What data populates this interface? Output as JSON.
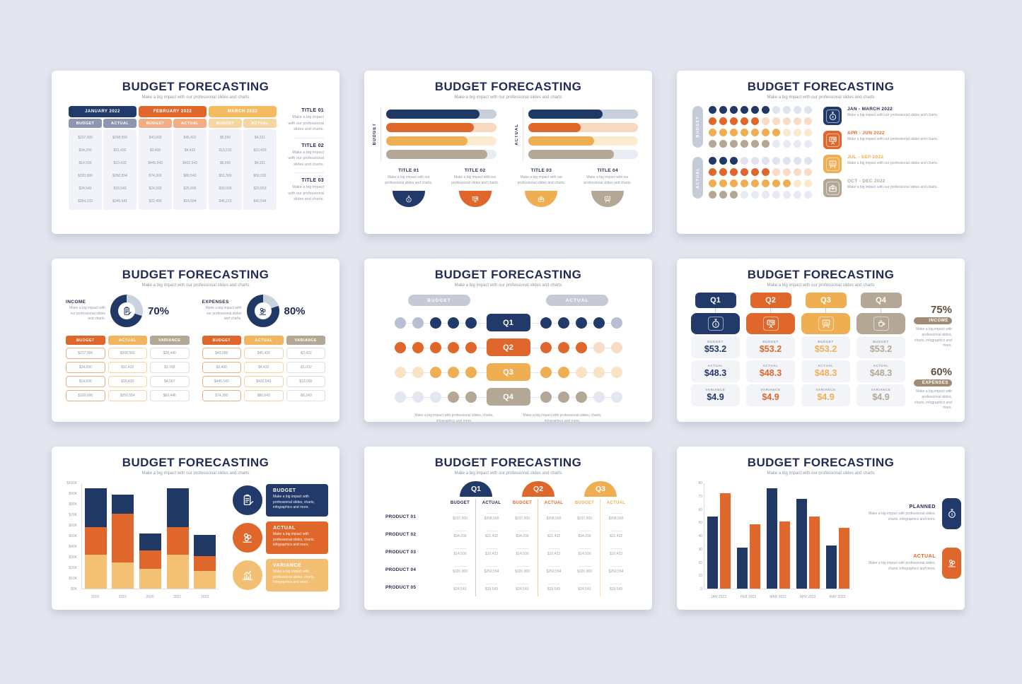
{
  "common": {
    "title": "BUDGET FORECASTING",
    "subtitle": "Make a big impact with our professional slides and charts",
    "desc_short": "Make a big impact with our professional slides and charts.",
    "desc_more": "Make a big impact with professional slides, charts, infographics and more."
  },
  "colors": {
    "navy": "#1F3864",
    "orange": "#E0672B",
    "yellow": "#F0AE52",
    "tan": "#B5A795",
    "heading": "#242B56",
    "page_bg": "#E3E6EF",
    "cell_bg": "#F1F3F8",
    "gray_pill": "#C5CAD6",
    "text_gray": "#949BAA",
    "value_gray": "#8F95A4"
  },
  "chart_data": [
    {
      "type": "bar",
      "title": "Slide 2 horizontal progress bars",
      "series": [
        {
          "name": "BUDGET",
          "values_pct": [
            85,
            80,
            74,
            92
          ]
        },
        {
          "name": "ACTUAL",
          "values_pct": [
            68,
            48,
            60,
            78
          ]
        }
      ],
      "colors": [
        "#1F3864",
        "#E0672B",
        "#F0AE52",
        "#B5A795"
      ]
    },
    {
      "type": "bar",
      "title": "Slide 7 stacked bars",
      "stacked": true,
      "categories": [
        "2018",
        "2019",
        "2020",
        "2021",
        "2022"
      ],
      "series": [
        {
          "name": "bottom-yellow",
          "values": [
            32,
            25,
            19,
            32,
            17
          ]
        },
        {
          "name": "middle-orange",
          "values": [
            26,
            46,
            17,
            26,
            14
          ]
        },
        {
          "name": "top-navy",
          "values": [
            37,
            18,
            16,
            37,
            20
          ]
        }
      ],
      "ylabel": "$K",
      "ylim": [
        0,
        100
      ]
    },
    {
      "type": "bar",
      "title": "Slide 9 grouped bars",
      "categories": [
        "JAN 2022",
        "FEB 2022",
        "MAR 2022",
        "APR 2022",
        "MAY 2022"
      ],
      "series": [
        {
          "name": "PLANNED",
          "values": [
            54.5,
            31,
            76,
            68,
            32.5
          ]
        },
        {
          "name": "ACTUAL",
          "values": [
            72,
            48.5,
            50.5,
            54.5,
            46
          ]
        }
      ],
      "ylim": [
        0,
        80
      ]
    },
    {
      "type": "pie",
      "title": "INCOME donut",
      "values": [
        70,
        30
      ]
    },
    {
      "type": "pie",
      "title": "EXPENSES donut",
      "values": [
        80,
        20
      ]
    }
  ],
  "slide1": {
    "budget_label": "BUDGET",
    "actual_label": "ACTUAL",
    "months": [
      {
        "label": "JANUARY 2022",
        "header_color": "#223A6A",
        "sub_color": "#8C96B1",
        "budget": [
          "$237,000",
          "$34,200",
          "$14,500",
          "$320,000",
          "$24,543",
          "$354,233"
        ],
        "actual": [
          "$208,560",
          "$31,432",
          "$10,433",
          "$250,554",
          "$33,543",
          "$345,641"
        ]
      },
      {
        "label": "FEBRUARY 2022",
        "header_color": "#E0672B",
        "sub_color": "#F1AE85",
        "budget": [
          "$43,000",
          "$3,400",
          "$445,543",
          "$74,300",
          "$24,000",
          "$22,450"
        ],
        "actual": [
          "$45,432",
          "$4,432",
          "$432,543",
          "$80,543",
          "$25,000",
          "$16,594"
        ]
      },
      {
        "label": "MARCH 2022",
        "header_color": "#F4BB63",
        "sub_color": "#F6D5A3",
        "budget": [
          "$5,550",
          "$15,532",
          "$5,550",
          "$51,300",
          "$30,500",
          "$45,213"
        ],
        "actual": [
          "$4,321",
          "$10,433",
          "$4,321",
          "$50,332",
          "$29,553",
          "$42,544"
        ]
      }
    ],
    "titles": [
      {
        "label": "TITLE 01"
      },
      {
        "label": "TITLE 02"
      },
      {
        "label": "TITLE 03"
      }
    ]
  },
  "slide2": {
    "groups": [
      {
        "label": "BUDGET",
        "bars": [
          {
            "color": "#1F3864",
            "track": "#C7CEDC",
            "pct": 85
          },
          {
            "color": "#E0672B",
            "track": "#F7D9C0",
            "pct": 80
          },
          {
            "color": "#F0AE52",
            "track": "#FCEBCF",
            "pct": 74
          },
          {
            "color": "#B5A795",
            "track": "#E8EDF4",
            "pct": 92
          }
        ]
      },
      {
        "label": "ACTUAL",
        "bars": [
          {
            "color": "#1F3864",
            "track": "#C7CEDC",
            "pct": 68
          },
          {
            "color": "#E0672B",
            "track": "#F7D9C0",
            "pct": 48
          },
          {
            "color": "#F0AE52",
            "track": "#FCEBCF",
            "pct": 60
          },
          {
            "color": "#B5A795",
            "track": "#E8EDF4",
            "pct": 78
          }
        ]
      }
    ],
    "items": [
      {
        "title": "TITLE 01",
        "color": "#223A6A",
        "icon": "stopwatch-icon"
      },
      {
        "title": "TITLE 02",
        "color": "#E0672B",
        "icon": "money-report-icon"
      },
      {
        "title": "TITLE 03",
        "color": "#F0AE52",
        "icon": "briefcase-icon"
      },
      {
        "title": "TITLE 04",
        "color": "#B5A795",
        "icon": "chart-easel-icon"
      }
    ]
  },
  "slide3": {
    "dots_per_row": 10,
    "sections": [
      {
        "label": "BUDGET",
        "rows": [
          {
            "color": "#1F3864",
            "off": "#DFE3ED",
            "filled": 6
          },
          {
            "color": "#E0672B",
            "off": "#F8DCC5",
            "filled": 5
          },
          {
            "color": "#F0AE52",
            "off": "#FBE9CC",
            "filled": 7
          },
          {
            "color": "#B5A795",
            "off": "#E6EAF2",
            "filled": 6
          }
        ]
      },
      {
        "label": "ACTUAL",
        "rows": [
          {
            "color": "#1F3864",
            "off": "#DFE3ED",
            "filled": 3
          },
          {
            "color": "#E0672B",
            "off": "#F8DCC5",
            "filled": 6
          },
          {
            "color": "#F0AE52",
            "off": "#FBE9CC",
            "filled": 8
          },
          {
            "color": "#B5A795",
            "off": "#E6EAF2",
            "filled": 3
          }
        ]
      }
    ],
    "items": [
      {
        "title": "JAN - MARCH 2022",
        "color": "#242B56",
        "bg": "#223A6A",
        "icon": "stopwatch-icon"
      },
      {
        "title": "APR - JUN 2022",
        "color": "#E0672B",
        "bg": "#E0672B",
        "icon": "money-report-icon"
      },
      {
        "title": "JUL - SEP 2022",
        "color": "#F0AE52",
        "bg": "#F0AE52",
        "icon": "chart-easel-icon"
      },
      {
        "title": "OCT - DEC 2022",
        "color": "#B5A795",
        "bg": "#B5A795",
        "icon": "briefcase-icon"
      }
    ]
  },
  "slide4": {
    "panels": [
      {
        "heading": "INCOME",
        "pct": "70%",
        "pct_value": 70,
        "icon": "clipboard-icon",
        "columns": [
          {
            "label": "BUDGET",
            "color": "#E0672B",
            "border": "#EBAE83",
            "values": [
              "$237,000",
              "$34,200",
              "$14,500",
              "$320,000"
            ]
          },
          {
            "label": "ACTUAL",
            "color": "#F2B45C",
            "border": "#F6D3A2",
            "values": [
              "$208,560",
              "$31,432",
              "$10,433",
              "$250,554"
            ]
          },
          {
            "label": "VARIANCE",
            "color": "#B5A795",
            "border": "#DCE0E8",
            "values": [
              "$28,440",
              "$2,768",
              "$4,067",
              "$69,446"
            ]
          }
        ]
      },
      {
        "heading": "EXPENSES",
        "pct": "80%",
        "pct_value": 80,
        "icon": "coins-icon",
        "columns": [
          {
            "label": "BUDGET",
            "color": "#E0672B",
            "border": "#EBAE83",
            "values": [
              "$43,000",
              "$3,400",
              "$445,543",
              "$74,300"
            ]
          },
          {
            "label": "ACTUAL",
            "color": "#F2B45C",
            "border": "#F6D3A2",
            "values": [
              "$45,432",
              "$4,432",
              "$432,543",
              "$80,543"
            ]
          },
          {
            "label": "VARIANCE",
            "color": "#B5A795",
            "border": "#DCE0E8",
            "values": [
              "-$2,432",
              "-$1,032",
              "$13,000",
              "-$6,243"
            ]
          }
        ]
      }
    ],
    "ring_rest": "#CBD2DF",
    "ring_color": "#1F3864"
  },
  "slide5": {
    "pills": [
      "BUDGET",
      "ACTUAL"
    ],
    "rows": [
      {
        "label": "Q1",
        "color": "#223A6A",
        "off": "#B7BFD2",
        "left": [
          0,
          0,
          1,
          1,
          1
        ],
        "right": [
          1,
          1,
          1,
          1,
          0
        ]
      },
      {
        "label": "Q2",
        "color": "#E0672B",
        "off": "#F8DCC5",
        "left": [
          1,
          1,
          1,
          1,
          1
        ],
        "right": [
          1,
          1,
          1,
          0,
          0
        ]
      },
      {
        "label": "Q3",
        "color": "#F0AE52",
        "off": "#FAE3C4",
        "left": [
          0,
          0,
          1,
          1,
          1
        ],
        "right": [
          1,
          1,
          0,
          0,
          0
        ]
      },
      {
        "label": "Q4",
        "color": "#B5A795",
        "off": "#E3E7F0",
        "left": [
          0,
          0,
          0,
          1,
          1
        ],
        "right": [
          1,
          1,
          1,
          0,
          0
        ]
      }
    ]
  },
  "slide6": {
    "quarters": [
      {
        "label": "Q1",
        "color": "#223A6A",
        "icon": "stopwatch-icon"
      },
      {
        "label": "Q2",
        "color": "#E0672B",
        "icon": "money-report-icon"
      },
      {
        "label": "Q3",
        "color": "#F0AE52",
        "icon": "chart-easel-icon"
      },
      {
        "label": "Q4",
        "color": "#B5A795",
        "icon": "coffee-icon"
      }
    ],
    "metrics": [
      {
        "label": "BUDGET",
        "value": "$53.2"
      },
      {
        "label": "ACTUAL",
        "value": "$48.3"
      },
      {
        "label": "VARIANCE",
        "value": "$4.9"
      }
    ],
    "side": [
      {
        "pct": "75%",
        "label": "INCOME"
      },
      {
        "pct": "60%",
        "label": "EXPENSES"
      }
    ]
  },
  "slide7": {
    "y_labels": [
      "$0K",
      "$10K",
      "$20K",
      "$30K",
      "$40K",
      "$50K",
      "$60K",
      "$70K",
      "$80K",
      "$90K",
      "$100K"
    ],
    "y_max": 100,
    "categories": [
      "2018",
      "2019",
      "2020",
      "2021",
      "2022"
    ],
    "stack_colors": [
      "#F3C174",
      "#E0672B",
      "#1F3864"
    ],
    "stacks": [
      [
        32,
        26,
        37
      ],
      [
        25,
        46,
        18
      ],
      [
        19,
        17,
        16
      ],
      [
        32,
        26,
        37
      ],
      [
        17,
        14,
        20
      ]
    ],
    "legend": [
      {
        "title": "BUDGET",
        "color": "#223A6A",
        "icon": "clipboard-icon"
      },
      {
        "title": "ACTUAL",
        "color": "#E0672B",
        "icon": "coins-icon"
      },
      {
        "title": "VARIANCE",
        "color": "#F3BF73",
        "icon": "chart-bars-icon"
      }
    ]
  },
  "slide8": {
    "col_budget": "BUDGET",
    "col_actual": "ACTUAL",
    "quarters": [
      {
        "label": "Q1",
        "color": "#223A6A",
        "text": "#242B56",
        "divider": "#C3CAD8"
      },
      {
        "label": "Q2",
        "color": "#E0672B",
        "text": "#E0672B",
        "divider": "#F2C9A9"
      },
      {
        "label": "Q3",
        "color": "#F0AE52",
        "text": "#F0AE52",
        "divider": "#F8DFB4"
      }
    ],
    "products": [
      {
        "label": "PRODUCT 01",
        "budget": "$237,000",
        "actual": "$208,560"
      },
      {
        "label": "PRODUCT 02",
        "budget": "$34,200",
        "actual": "$31,432"
      },
      {
        "label": "PRODUCT 03",
        "budget": "$14,500",
        "actual": "$10,433"
      },
      {
        "label": "PRODUCT 04",
        "budget": "$320,000",
        "actual": "$250,554"
      },
      {
        "label": "PRODUCT 05",
        "budget": "$24,543",
        "actual": "$33,543"
      }
    ]
  },
  "slide9": {
    "y_labels": [
      "0",
      "10",
      "20",
      "30",
      "40",
      "50",
      "60",
      "70",
      "80"
    ],
    "y_max": 80,
    "categories": [
      "JAN 2022",
      "FEB 2022",
      "MAR 2022",
      "APR 2022",
      "MAY 2022"
    ],
    "planned": [
      54.5,
      31,
      76,
      68,
      32.5
    ],
    "actual": [
      72,
      48.5,
      50.5,
      54.5,
      46
    ],
    "legend": [
      {
        "title": "PLANNED",
        "color": "#223A6A",
        "text": "#242B56",
        "icon": "stopwatch-icon"
      },
      {
        "title": "ACTUAL",
        "color": "#E0672B",
        "text": "#E0672B",
        "icon": "coins-icon"
      }
    ]
  }
}
